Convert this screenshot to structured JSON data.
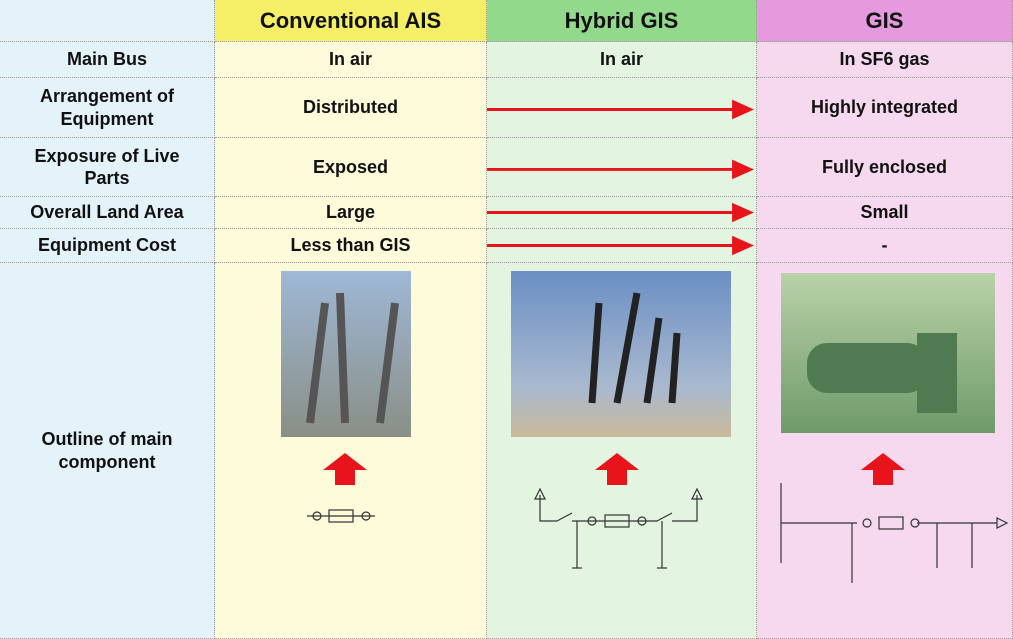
{
  "header": {
    "columns": [
      "Conventional AIS",
      "Hybrid GIS",
      "GIS"
    ]
  },
  "rows": [
    {
      "label": "Main Bus",
      "ais": "In air",
      "hybrid": "In air",
      "gis": "In SF6 gas"
    },
    {
      "label": "Arrangement of Equipment",
      "ais": "Distributed",
      "gis": "Highly integrated"
    },
    {
      "label": "Exposure of Live Parts",
      "ais": "Exposed",
      "gis": "Fully enclosed"
    },
    {
      "label": "Overall Land Area",
      "ais": "Large",
      "gis": "Small"
    },
    {
      "label": "Equipment Cost",
      "ais": "Less than GIS",
      "gis": "-"
    },
    {
      "label": "Outline of main component"
    }
  ]
}
